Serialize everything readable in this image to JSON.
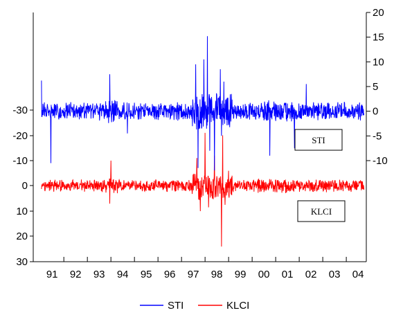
{
  "chart_data": {
    "type": "line",
    "title": "",
    "x": {
      "tick_labels": [
        "91",
        "92",
        "93",
        "94",
        "95",
        "96",
        "97",
        "98",
        "99",
        "00",
        "01",
        "02",
        "03",
        "04"
      ],
      "range": [
        1990.7,
        2004.85
      ]
    },
    "y_right": {
      "series": "STI",
      "ticks": [
        20,
        15,
        10,
        5,
        0,
        -5,
        -10
      ],
      "range": [
        -10,
        20
      ]
    },
    "y_left": {
      "series": "KLCI",
      "tick_labels": [
        "-30",
        "-20",
        "-10",
        "0",
        "10",
        "20",
        "30"
      ],
      "range": [
        -30,
        30
      ]
    },
    "series": [
      {
        "name": "STI",
        "color": "#0000ff",
        "axis": "right",
        "baseline": 0,
        "typical_amplitude": 1.5,
        "spikes": [
          {
            "x": 1991.05,
            "y": 6.2
          },
          {
            "x": 1991.45,
            "y": -10.5
          },
          {
            "x": 1993.95,
            "y": 7.5
          },
          {
            "x": 1994.7,
            "y": -4.5
          },
          {
            "x": 1997.6,
            "y": 9.5
          },
          {
            "x": 1997.7,
            "y": -11.5
          },
          {
            "x": 1997.95,
            "y": 10.5
          },
          {
            "x": 1998.1,
            "y": 15.2
          },
          {
            "x": 1998.2,
            "y": -8.0
          },
          {
            "x": 1998.4,
            "y": -12.0
          },
          {
            "x": 1998.65,
            "y": 8.5
          },
          {
            "x": 1998.7,
            "y": -5.0
          },
          {
            "x": 1998.8,
            "y": 6.0
          },
          {
            "x": 2000.75,
            "y": -9.0
          },
          {
            "x": 2001.8,
            "y": -7.5
          },
          {
            "x": 2002.3,
            "y": 5.5
          }
        ]
      },
      {
        "name": "KLCI",
        "color": "#ff0000",
        "axis": "left",
        "baseline": 0,
        "typical_amplitude": 2.0,
        "spikes": [
          {
            "x": 1993.95,
            "y": -7.0
          },
          {
            "x": 1994.0,
            "y": 10.0
          },
          {
            "x": 1997.65,
            "y": 11.0
          },
          {
            "x": 1997.8,
            "y": -10.0
          },
          {
            "x": 1998.0,
            "y": 21.0
          },
          {
            "x": 1998.15,
            "y": -8.5
          },
          {
            "x": 1998.4,
            "y": 12.0
          },
          {
            "x": 1998.7,
            "y": -24.0
          },
          {
            "x": 1998.75,
            "y": 20.0
          },
          {
            "x": 1998.85,
            "y": -7.5
          },
          {
            "x": 1999.0,
            "y": 6.0
          }
        ]
      }
    ],
    "annotations": [
      "STI",
      "KLCI"
    ],
    "legend": {
      "position": "bottom-center",
      "entries": [
        "STI",
        "KLCI"
      ]
    },
    "grid": false
  }
}
